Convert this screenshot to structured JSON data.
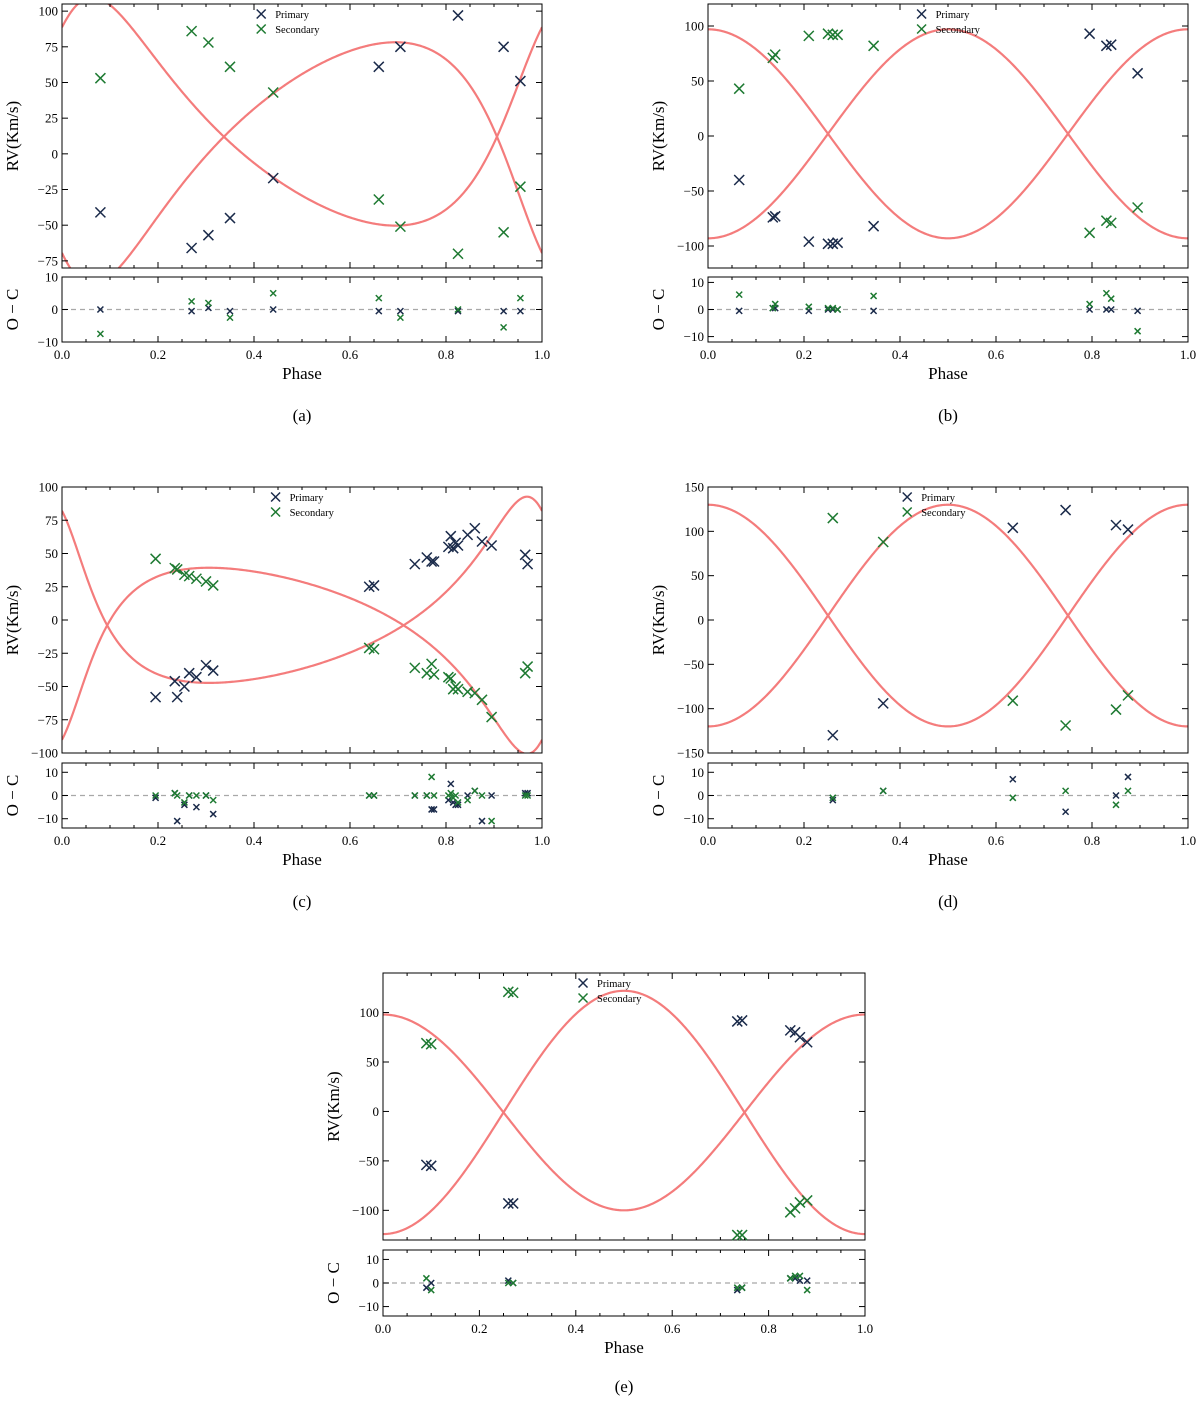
{
  "figure": {
    "colors": {
      "primary": "#1a2a4a",
      "secondary": "#1e7a32",
      "model": "#f47c7c",
      "zero_line": "#a8a8a8"
    },
    "marker": "x"
  },
  "chart_data": [
    {
      "id": "a",
      "caption": "(a)",
      "type": "scatter",
      "ylabel": "RV(Km/s)",
      "resid_ylabel": "O − C",
      "xlabel": "Phase",
      "xlim": [
        0,
        1
      ],
      "ylim": [
        -80,
        105
      ],
      "resid_ylim": [
        -10,
        10
      ],
      "x_ticks": [
        "0.0",
        "0.2",
        "0.4",
        "0.6",
        "0.8",
        "1.0"
      ],
      "y_ticks": [
        "100",
        "75",
        "50",
        "25",
        "0",
        "−25",
        "−50",
        "−75"
      ],
      "y_tick_values": [
        100,
        75,
        50,
        25,
        0,
        -25,
        -50,
        -75
      ],
      "resid_ticks": [
        "10",
        "0",
        "−10"
      ],
      "resid_tick_values": [
        10,
        0,
        -10
      ],
      "legend": [
        "Primary",
        "Secondary"
      ],
      "legend_position": "top-center",
      "primary": {
        "phase": [
          0.08,
          0.27,
          0.305,
          0.35,
          0.44,
          0.66,
          0.705,
          0.825,
          0.92,
          0.955
        ],
        "rv": [
          -41,
          -66,
          -57,
          -45,
          -17,
          61,
          75,
          97,
          75,
          51
        ],
        "resid": [
          0,
          -0.5,
          0.5,
          -0.5,
          0,
          -0.5,
          -0.5,
          -0.5,
          -0.5,
          -0.5
        ]
      },
      "secondary": {
        "phase": [
          0.08,
          0.27,
          0.305,
          0.35,
          0.44,
          0.66,
          0.705,
          0.825,
          0.92,
          0.955
        ],
        "rv": [
          53,
          86,
          78,
          61,
          43,
          -32,
          -51,
          -70,
          -55,
          -23
        ],
        "resid": [
          -7.5,
          2.5,
          2.0,
          -2.5,
          5.0,
          3.5,
          -2.5,
          0,
          -5.5,
          3.5
        ]
      },
      "model": {
        "P": 1.0,
        "T0": 0.0,
        "e": 0.3,
        "omega": 2.4,
        "gamma": 12,
        "K1": 85,
        "K2": 80
      }
    },
    {
      "id": "b",
      "caption": "(b)",
      "type": "scatter",
      "ylabel": "RV(Km/s)",
      "resid_ylabel": "O − C",
      "xlabel": "Phase",
      "xlim": [
        0,
        1
      ],
      "ylim": [
        -120,
        120
      ],
      "resid_ylim": [
        -12,
        12
      ],
      "x_ticks": [
        "0.0",
        "0.2",
        "0.4",
        "0.6",
        "0.8",
        "1.0"
      ],
      "y_ticks": [
        "100",
        "50",
        "0",
        "−50",
        "−100"
      ],
      "y_tick_values": [
        100,
        50,
        0,
        -50,
        -100
      ],
      "resid_ticks": [
        "10",
        "0",
        "−10"
      ],
      "resid_tick_values": [
        10,
        0,
        -10
      ],
      "legend": [
        "Primary",
        "Secondary"
      ],
      "legend_position": "top-right",
      "primary": {
        "phase": [
          0.065,
          0.135,
          0.14,
          0.21,
          0.25,
          0.26,
          0.27,
          0.345,
          0.795,
          0.83,
          0.84,
          0.895
        ],
        "rv": [
          -40,
          -74,
          -73,
          -96,
          -98,
          -98,
          -97,
          -82,
          93,
          82,
          83,
          57
        ],
        "resid": [
          -0.5,
          0.5,
          0.5,
          -0.5,
          0,
          0,
          0,
          -0.5,
          0,
          0,
          0,
          -0.5
        ]
      },
      "secondary": {
        "phase": [
          0.065,
          0.135,
          0.14,
          0.21,
          0.25,
          0.26,
          0.27,
          0.345,
          0.795,
          0.83,
          0.84,
          0.895
        ],
        "rv": [
          43,
          71,
          74,
          91,
          93,
          92,
          92,
          82,
          -88,
          -77,
          -79,
          -65
        ],
        "resid": [
          5.5,
          0.5,
          2.0,
          1.0,
          0.5,
          0.5,
          0,
          5.0,
          2.0,
          6.0,
          4.0,
          -8.0
        ]
      },
      "model": {
        "P": 1.0,
        "T0": 0.0,
        "e": 0.0,
        "omega": 0.0,
        "gamma": 2,
        "K1": 95,
        "K2": 95
      }
    },
    {
      "id": "c",
      "caption": "(c)",
      "type": "scatter",
      "ylabel": "RV(Km/s)",
      "resid_ylabel": "O − C",
      "xlabel": "Phase",
      "xlim": [
        0,
        1
      ],
      "ylim": [
        -100,
        100
      ],
      "resid_ylim": [
        -14,
        14
      ],
      "x_ticks": [
        "0.0",
        "0.2",
        "0.4",
        "0.6",
        "0.8",
        "1.0"
      ],
      "y_ticks": [
        "100",
        "75",
        "50",
        "25",
        "0",
        "−25",
        "−50",
        "−75",
        "−100"
      ],
      "y_tick_values": [
        100,
        75,
        50,
        25,
        0,
        -25,
        -50,
        -75,
        -100
      ],
      "resid_ticks": [
        "10",
        "0",
        "−10"
      ],
      "resid_tick_values": [
        10,
        0,
        -10
      ],
      "legend": [
        "Primary",
        "Secondary"
      ],
      "legend_position": "top-right",
      "primary": {
        "phase": [
          0.195,
          0.235,
          0.24,
          0.255,
          0.265,
          0.28,
          0.3,
          0.315,
          0.64,
          0.65,
          0.735,
          0.76,
          0.77,
          0.775,
          0.805,
          0.81,
          0.815,
          0.82,
          0.825,
          0.845,
          0.86,
          0.875,
          0.895,
          0.965,
          0.97
        ],
        "rv": [
          -58,
          -46,
          -58,
          -50,
          -40,
          -43,
          -34,
          -38,
          25,
          26,
          42,
          47,
          44,
          44,
          55,
          63,
          54,
          58,
          56,
          64,
          69,
          59,
          56,
          49,
          42
        ],
        "resid": [
          -1,
          1,
          -11,
          -4,
          0,
          -5,
          0,
          -8,
          0,
          0,
          0,
          0,
          -6,
          -6,
          -2,
          5,
          -3,
          -4,
          -4,
          0,
          2,
          -11,
          0,
          1,
          1
        ]
      },
      "secondary": {
        "phase": [
          0.195,
          0.235,
          0.24,
          0.255,
          0.265,
          0.28,
          0.3,
          0.315,
          0.64,
          0.65,
          0.735,
          0.76,
          0.77,
          0.775,
          0.805,
          0.81,
          0.815,
          0.82,
          0.825,
          0.845,
          0.86,
          0.875,
          0.895,
          0.965,
          0.97
        ],
        "rv": [
          46,
          39,
          38,
          34,
          33,
          31,
          29,
          26,
          -21,
          -22,
          -36,
          -40,
          -33,
          -41,
          -43,
          -44,
          -52,
          -50,
          -52,
          -54,
          -55,
          -60,
          -73,
          -40,
          -35
        ],
        "resid": [
          0,
          1,
          0,
          -3,
          0,
          0,
          0,
          -2,
          0,
          0,
          0,
          0,
          8,
          0,
          0,
          1,
          -1,
          0,
          -3,
          -2,
          2,
          0,
          -11,
          0,
          0
        ]
      },
      "model": {
        "P": 1.0,
        "T0": 0.0,
        "e": 0.45,
        "omega": 3.7,
        "gamma": -4,
        "K1": 70,
        "K2": 70
      }
    },
    {
      "id": "d",
      "caption": "(d)",
      "type": "scatter",
      "ylabel": "RV(Km/s)",
      "resid_ylabel": "O − C",
      "xlabel": "Phase",
      "xlim": [
        0,
        1
      ],
      "ylim": [
        -150,
        150
      ],
      "resid_ylim": [
        -14,
        14
      ],
      "x_ticks": [
        "0.0",
        "0.2",
        "0.4",
        "0.6",
        "0.8",
        "1.0"
      ],
      "y_ticks": [
        "150",
        "100",
        "50",
        "0",
        "−50",
        "−100",
        "−150"
      ],
      "y_tick_values": [
        150,
        100,
        50,
        0,
        -50,
        -100,
        -150
      ],
      "resid_ticks": [
        "10",
        "0",
        "−10"
      ],
      "resid_tick_values": [
        10,
        0,
        -10
      ],
      "legend": [
        "Primary",
        "Secondary"
      ],
      "legend_position": "top-center",
      "primary": {
        "phase": [
          0.26,
          0.365,
          0.635,
          0.745,
          0.85,
          0.875
        ],
        "rv": [
          -130,
          -94,
          104,
          124,
          107,
          102
        ],
        "resid": [
          -2,
          2,
          7,
          -7,
          0,
          8
        ]
      },
      "secondary": {
        "phase": [
          0.26,
          0.365,
          0.635,
          0.745,
          0.85,
          0.875
        ],
        "rv": [
          115,
          88,
          -91,
          -119,
          -101,
          -85
        ],
        "resid": [
          -1,
          2,
          -1,
          2,
          -4,
          2
        ]
      },
      "model": {
        "P": 1.0,
        "T0": 0.0,
        "e": 0.0,
        "omega": 0.0,
        "gamma": 5,
        "K1": 125,
        "K2": 125
      }
    },
    {
      "id": "e",
      "caption": "(e)",
      "type": "scatter",
      "ylabel": "RV(Km/s)",
      "resid_ylabel": "O − C",
      "xlabel": "Phase",
      "xlim": [
        0,
        1
      ],
      "ylim": [
        -130,
        140
      ],
      "resid_ylim": [
        -14,
        14
      ],
      "x_ticks": [
        "0.0",
        "0.2",
        "0.4",
        "0.6",
        "0.8",
        "1.0"
      ],
      "y_ticks": [
        "100",
        "50",
        "0",
        "−50",
        "−100"
      ],
      "y_tick_values": [
        100,
        50,
        0,
        -50,
        -100
      ],
      "resid_ticks": [
        "10",
        "0",
        "−10"
      ],
      "resid_tick_values": [
        10,
        0,
        -10
      ],
      "legend": [
        "Primary",
        "Secondary"
      ],
      "legend_position": "top-center",
      "primary": {
        "phase": [
          0.09,
          0.1,
          0.26,
          0.27,
          0.735,
          0.745,
          0.845,
          0.855,
          0.865,
          0.88
        ],
        "rv": [
          -54,
          -55,
          -93,
          -93,
          91,
          92,
          82,
          80,
          75,
          70
        ],
        "resid": [
          -2,
          0,
          1,
          0,
          -3,
          -2,
          2,
          2,
          1,
          1
        ]
      },
      "secondary": {
        "phase": [
          0.09,
          0.1,
          0.26,
          0.27,
          0.735,
          0.745,
          0.845,
          0.855,
          0.865,
          0.88
        ],
        "rv": [
          69,
          68,
          121,
          120,
          -125,
          -125,
          -102,
          -98,
          -92,
          -90
        ],
        "resid": [
          2,
          -3,
          0,
          0,
          -2,
          -2,
          2,
          3,
          3,
          -3
        ]
      },
      "model": {
        "P": 1.0,
        "T0": 0.0,
        "e": 0.0,
        "omega": 0.0,
        "gamma": -1,
        "K1": 99,
        "K2": 123
      }
    }
  ]
}
